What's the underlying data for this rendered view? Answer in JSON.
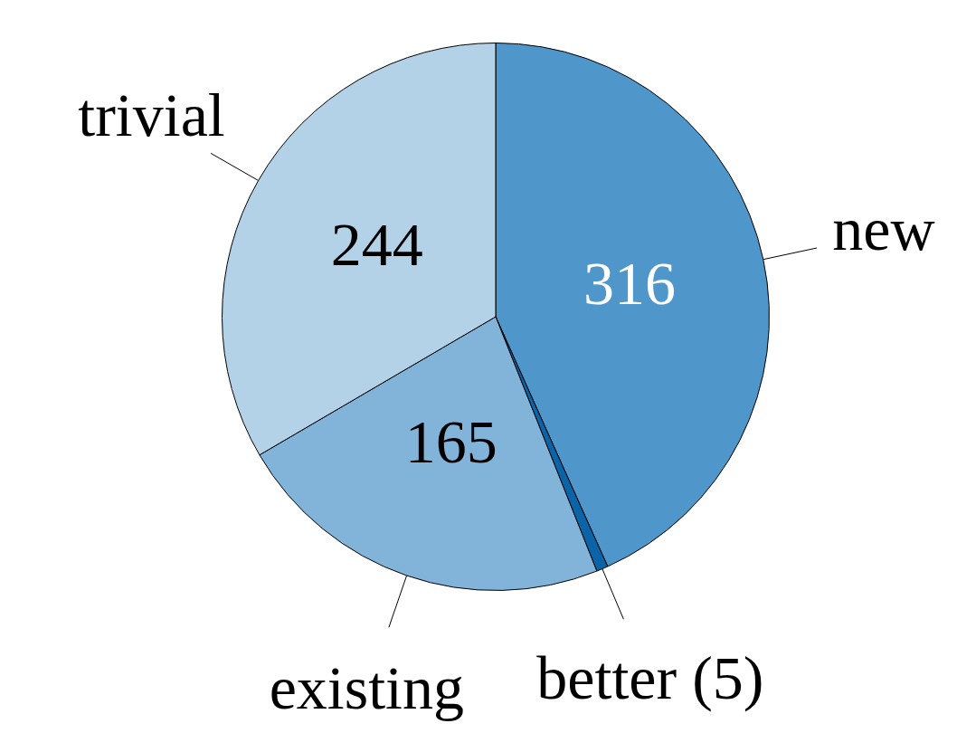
{
  "chart_data": {
    "type": "pie",
    "categories": [
      "new",
      "better (5)",
      "existing",
      "trivial"
    ],
    "values": [
      316,
      5,
      165,
      244
    ],
    "colors": [
      "#4f96cb",
      "#0b63a8",
      "#82b4da",
      "#b3d1e7"
    ],
    "value_labels": [
      "316",
      null,
      "165",
      "244"
    ],
    "legend": false
  }
}
